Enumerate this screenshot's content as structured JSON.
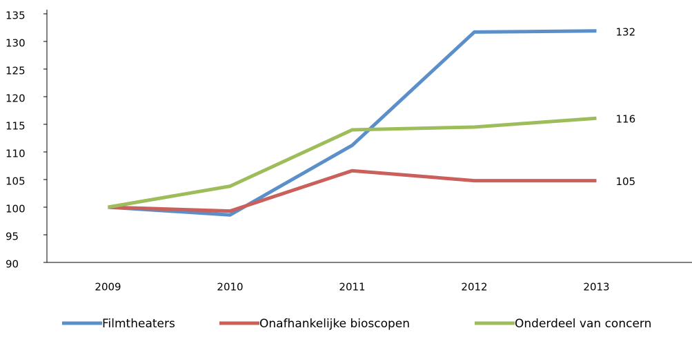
{
  "chart_data": {
    "type": "line",
    "categories": [
      "2009",
      "2010",
      "2011",
      "2012",
      "2013"
    ],
    "series": [
      {
        "name": "Filmtheaters",
        "color": "#5b8fc9",
        "values": [
          100,
          98.6,
          111.2,
          131.7,
          131.9
        ],
        "value_labels": [
          null,
          null,
          null,
          null,
          "132"
        ]
      },
      {
        "name": "Onafhankelijke bioscopen",
        "color": "#c9605c",
        "values": [
          100,
          99.3,
          106.6,
          104.8,
          104.8
        ],
        "value_labels": [
          null,
          null,
          null,
          null,
          "105"
        ]
      },
      {
        "name": "Onderdeel van concern",
        "color": "#9dbd5a",
        "values": [
          100,
          103.8,
          114,
          114.5,
          116.1
        ],
        "value_labels": [
          null,
          null,
          null,
          null,
          "116"
        ]
      }
    ],
    "ylim": [
      90,
      135
    ],
    "yticks": [
      90,
      95,
      100,
      105,
      110,
      115,
      120,
      125,
      130,
      135
    ],
    "grid": false,
    "legend": "bottom"
  }
}
